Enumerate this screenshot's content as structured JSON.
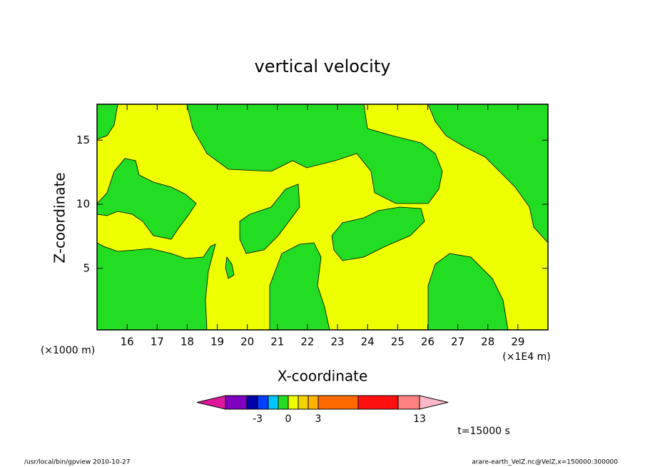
{
  "chart_data": {
    "type": "contour",
    "title": "vertical velocity",
    "x_label": "X-coordinate",
    "y_label": "Z-coordinate",
    "x_unit": "(×1E4 m)",
    "y_unit": "(×1000 m)",
    "xlim": [
      15,
      30
    ],
    "xticks": [
      16,
      17,
      18,
      19,
      20,
      21,
      22,
      23,
      24,
      25,
      26,
      27,
      28,
      29
    ],
    "ylim": [
      0.2,
      17.8
    ],
    "yticks": [
      5,
      10,
      15
    ],
    "fill_colors": {
      "negative_small": "#22dd22",
      "positive_small": "#eeff00"
    },
    "colorbar": {
      "ticks": [
        -3,
        0,
        3,
        13
      ],
      "colors": [
        "#e0189e",
        "#7f00c0",
        "#0000a8",
        "#0040ff",
        "#00c8ff",
        "#22dd22",
        "#eeff00",
        "#f4d200",
        "#ffb400",
        "#ff6a00",
        "#ff1010",
        "#ff8080",
        "#ffb8c8"
      ]
    },
    "time_label": "t=15000 s",
    "footer_left": "/usr/local/bin/gpview  2010-10-27",
    "footer_right": "arare-earth_VelZ.nc@VelZ,x=150000:300000"
  }
}
